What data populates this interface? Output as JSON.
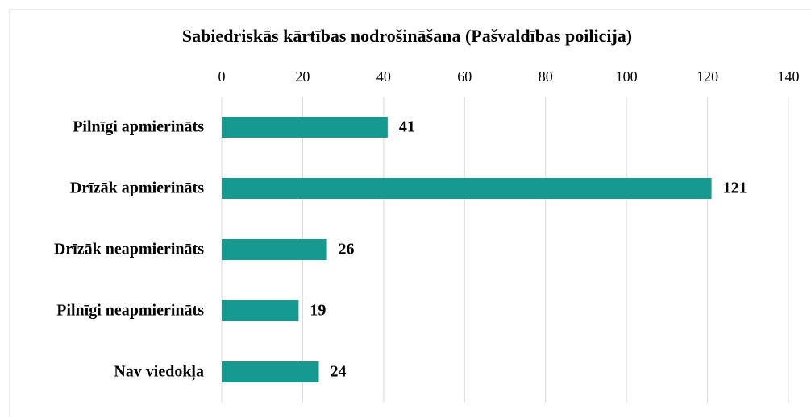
{
  "chart_data": {
    "type": "bar",
    "orientation": "horizontal",
    "title": "Sabiedriskās kārtības nodrošināšana (Pašvaldības poilicija)",
    "categories": [
      "Pilnīgi apmierināts",
      "Drīzāk apmierināts",
      "Drīzāk neapmierināts",
      "Pilnīgi neapmierināts",
      "Nav viedokļa"
    ],
    "values": [
      41,
      121,
      26,
      19,
      24
    ],
    "color": "#16998f",
    "xlim": [
      0,
      140
    ],
    "xticks": [
      0,
      20,
      40,
      60,
      80,
      100,
      120,
      140
    ],
    "grid": true
  }
}
